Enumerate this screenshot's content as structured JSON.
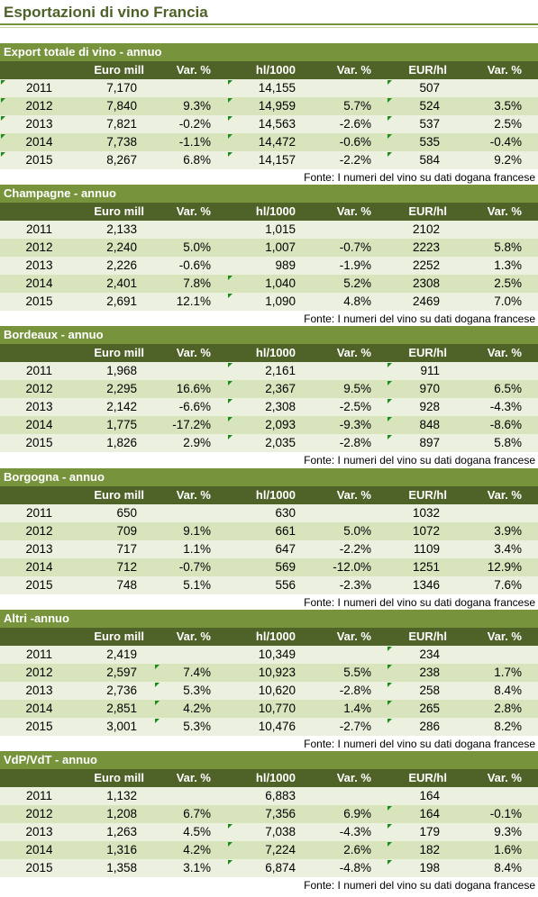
{
  "title": "Esportazioni di vino Francia",
  "headers": [
    "",
    "Euro mill",
    "Var. %",
    "hl/1000",
    "Var. %",
    "EUR/hl",
    "Var. %"
  ],
  "source": "Fonte: I numeri del vino su dati dogana francese",
  "colors": {
    "title": "#4e6228",
    "section_bar": "#77933c",
    "header_bar": "#4f6228",
    "row_light": "#ebf1de",
    "row_dark": "#d7e4bc",
    "error_marker": "#1a8a1a"
  },
  "sections": [
    {
      "title": "Export totale di vino - annuo",
      "rows": [
        [
          "2011",
          "7,170",
          "",
          "14,155",
          "",
          "507",
          ""
        ],
        [
          "2012",
          "7,840",
          "9.3%",
          "14,959",
          "5.7%",
          "524",
          "3.5%"
        ],
        [
          "2013",
          "7,821",
          "-0.2%",
          "14,563",
          "-2.6%",
          "537",
          "2.5%"
        ],
        [
          "2014",
          "7,738",
          "-1.1%",
          "14,472",
          "-0.6%",
          "535",
          "-0.4%"
        ],
        [
          "2015",
          "8,267",
          "6.8%",
          "14,157",
          "-2.2%",
          "584",
          "9.2%"
        ]
      ]
    },
    {
      "title": "Champagne - annuo",
      "rows": [
        [
          "2011",
          "2,133",
          "",
          "1,015",
          "",
          "2102",
          ""
        ],
        [
          "2012",
          "2,240",
          "5.0%",
          "1,007",
          "-0.7%",
          "2223",
          "5.8%"
        ],
        [
          "2013",
          "2,226",
          "-0.6%",
          "989",
          "-1.9%",
          "2252",
          "1.3%"
        ],
        [
          "2014",
          "2,401",
          "7.8%",
          "1,040",
          "5.2%",
          "2308",
          "2.5%"
        ],
        [
          "2015",
          "2,691",
          "12.1%",
          "1,090",
          "4.8%",
          "2469",
          "7.0%"
        ]
      ]
    },
    {
      "title": "Bordeaux - annuo",
      "rows": [
        [
          "2011",
          "1,968",
          "",
          "2,161",
          "",
          "911",
          ""
        ],
        [
          "2012",
          "2,295",
          "16.6%",
          "2,367",
          "9.5%",
          "970",
          "6.5%"
        ],
        [
          "2013",
          "2,142",
          "-6.6%",
          "2,308",
          "-2.5%",
          "928",
          "-4.3%"
        ],
        [
          "2014",
          "1,775",
          "-17.2%",
          "2,093",
          "-9.3%",
          "848",
          "-8.6%"
        ],
        [
          "2015",
          "1,826",
          "2.9%",
          "2,035",
          "-2.8%",
          "897",
          "5.8%"
        ]
      ]
    },
    {
      "title": "Borgogna - annuo",
      "rows": [
        [
          "2011",
          "650",
          "",
          "630",
          "",
          "1032",
          ""
        ],
        [
          "2012",
          "709",
          "9.1%",
          "661",
          "5.0%",
          "1072",
          "3.9%"
        ],
        [
          "2013",
          "717",
          "1.1%",
          "647",
          "-2.2%",
          "1109",
          "3.4%"
        ],
        [
          "2014",
          "712",
          "-0.7%",
          "569",
          "-12.0%",
          "1251",
          "12.9%"
        ],
        [
          "2015",
          "748",
          "5.1%",
          "556",
          "-2.3%",
          "1346",
          "7.6%"
        ]
      ]
    },
    {
      "title": "Altri -annuo",
      "rows": [
        [
          "2011",
          "2,419",
          "",
          "10,349",
          "",
          "234",
          ""
        ],
        [
          "2012",
          "2,597",
          "7.4%",
          "10,923",
          "5.5%",
          "238",
          "1.7%"
        ],
        [
          "2013",
          "2,736",
          "5.3%",
          "10,620",
          "-2.8%",
          "258",
          "8.4%"
        ],
        [
          "2014",
          "2,851",
          "4.2%",
          "10,770",
          "1.4%",
          "265",
          "2.8%"
        ],
        [
          "2015",
          "3,001",
          "5.3%",
          "10,476",
          "-2.7%",
          "286",
          "8.2%"
        ]
      ]
    },
    {
      "title": "VdP/VdT - annuo",
      "rows": [
        [
          "2011",
          "1,132",
          "",
          "6,883",
          "",
          "164",
          ""
        ],
        [
          "2012",
          "1,208",
          "6.7%",
          "7,356",
          "6.9%",
          "164",
          "-0.1%"
        ],
        [
          "2013",
          "1,263",
          "4.5%",
          "7,038",
          "-4.3%",
          "179",
          "9.3%"
        ],
        [
          "2014",
          "1,316",
          "4.2%",
          "7,224",
          "2.6%",
          "182",
          "1.6%"
        ],
        [
          "2015",
          "1,358",
          "3.1%",
          "6,874",
          "-4.8%",
          "198",
          "8.4%"
        ]
      ]
    }
  ]
}
